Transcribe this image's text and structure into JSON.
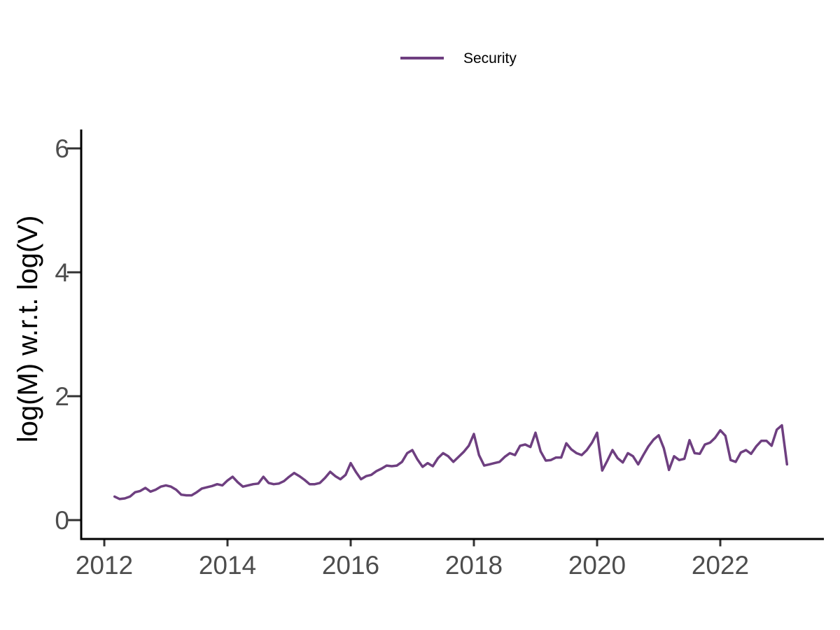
{
  "chart_data": {
    "type": "line",
    "title": "",
    "xlabel": "",
    "ylabel": "log(M) w.r.t. log(V)",
    "legend": {
      "position": "top-center",
      "entries": [
        {
          "label": "Security",
          "color": "#6e3f80"
        }
      ]
    },
    "x_ticks": [
      2012,
      2014,
      2016,
      2018,
      2020,
      2022
    ],
    "y_ticks": [
      0,
      2,
      4,
      6
    ],
    "xlim": [
      2011.625,
      2023.682
    ],
    "ylim": [
      -0.305,
      6.305
    ],
    "grid": "off",
    "colors": {
      "series": "#6e3f80",
      "axis_line": "#000000",
      "tick_mark": "#333333",
      "tick_label": "#4d4d4d",
      "axis_title": "#000000",
      "background": "#ffffff"
    },
    "series": [
      {
        "name": "Security",
        "color": "#6e3f80",
        "frequency": "monthly",
        "start": {
          "year": 2012,
          "month": 3
        },
        "values": [
          0.38,
          0.34,
          0.35,
          0.38,
          0.45,
          0.47,
          0.52,
          0.46,
          0.49,
          0.54,
          0.56,
          0.54,
          0.49,
          0.41,
          0.4,
          0.4,
          0.45,
          0.51,
          0.53,
          0.55,
          0.58,
          0.56,
          0.64,
          0.7,
          0.61,
          0.54,
          0.56,
          0.58,
          0.59,
          0.7,
          0.6,
          0.58,
          0.59,
          0.63,
          0.7,
          0.76,
          0.71,
          0.65,
          0.58,
          0.58,
          0.6,
          0.68,
          0.78,
          0.71,
          0.66,
          0.73,
          0.92,
          0.78,
          0.66,
          0.71,
          0.73,
          0.79,
          0.83,
          0.88,
          0.87,
          0.88,
          0.94,
          1.08,
          1.13,
          0.98,
          0.86,
          0.92,
          0.87,
          1.0,
          1.08,
          1.03,
          0.94,
          1.02,
          1.1,
          1.2,
          1.39,
          1.05,
          0.88,
          0.9,
          0.92,
          0.94,
          1.02,
          1.08,
          1.05,
          1.2,
          1.22,
          1.18,
          1.41,
          1.11,
          0.96,
          0.97,
          1.01,
          1.01,
          1.24,
          1.14,
          1.08,
          1.05,
          1.13,
          1.25,
          1.41,
          0.8,
          0.96,
          1.13,
          1.0,
          0.93,
          1.08,
          1.03,
          0.9,
          1.05,
          1.19,
          1.3,
          1.37,
          1.16,
          0.81,
          1.03,
          0.97,
          0.99,
          1.29,
          1.08,
          1.07,
          1.22,
          1.25,
          1.33,
          1.45,
          1.36,
          0.97,
          0.94,
          1.09,
          1.13,
          1.07,
          1.19,
          1.28,
          1.28,
          1.2,
          1.46,
          1.53,
          0.9
        ]
      }
    ]
  }
}
